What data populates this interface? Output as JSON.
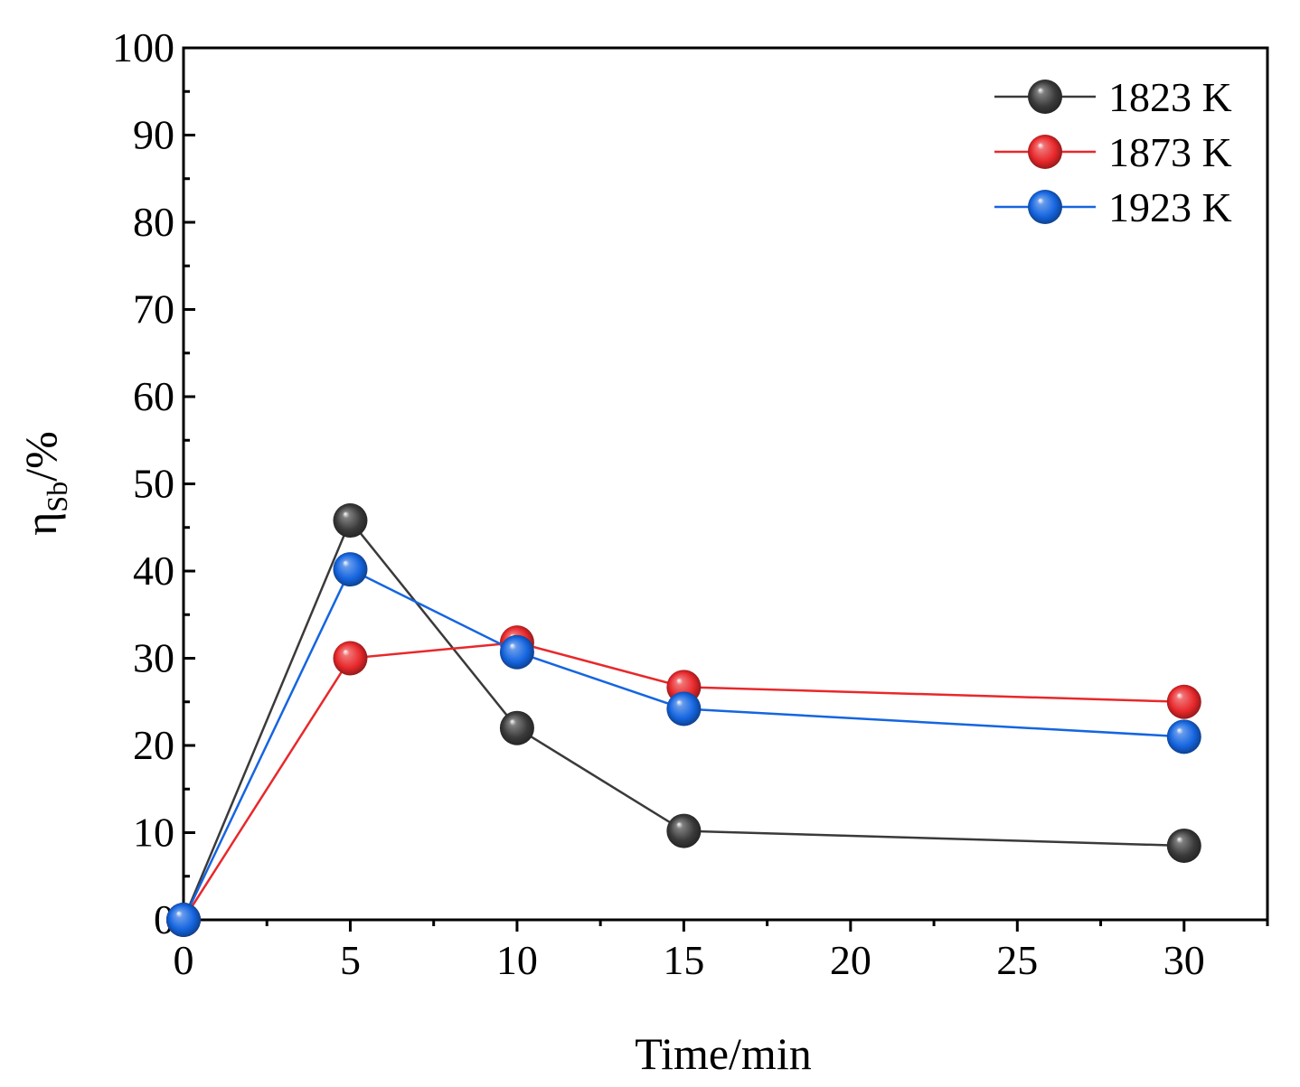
{
  "chart_data": {
    "type": "line",
    "title": "",
    "xlabel": "Time/min",
    "ylabel": {
      "main": "η",
      "sub": "Sb",
      "suffix": "/%"
    },
    "xlim": [
      0,
      32.5
    ],
    "ylim": [
      0,
      100
    ],
    "x_ticks": [
      0,
      5,
      10,
      15,
      20,
      25,
      30
    ],
    "y_ticks": [
      0,
      10,
      20,
      30,
      40,
      50,
      60,
      70,
      80,
      90,
      100
    ],
    "grid": false,
    "legend_position": "top-right",
    "series": [
      {
        "name": "1823 K",
        "color": "#3a3a3a",
        "x": [
          0,
          5,
          10,
          15,
          30
        ],
        "values": [
          0,
          45.8,
          22.0,
          10.2,
          8.5
        ]
      },
      {
        "name": "1873 K",
        "color": "#e8282b",
        "x": [
          0,
          5,
          10,
          15,
          30
        ],
        "values": [
          0,
          30.0,
          31.8,
          26.7,
          25.0
        ]
      },
      {
        "name": "1923 K",
        "color": "#1565e0",
        "x": [
          0,
          5,
          10,
          15,
          30
        ],
        "values": [
          0,
          40.2,
          30.7,
          24.2,
          21.0
        ]
      }
    ]
  }
}
